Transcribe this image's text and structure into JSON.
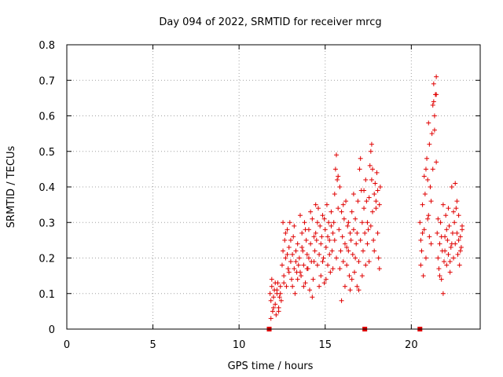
{
  "chart_data": {
    "type": "scatter",
    "title": "Day 094 of 2022, SRMTID for receiver mrcg",
    "xlabel": "GPS time / hours",
    "ylabel": "SRMTID / TECUs",
    "xlim": [
      0,
      24
    ],
    "ylim": [
      0,
      0.8
    ],
    "xticks": [
      0,
      5,
      10,
      15,
      20
    ],
    "xtick_labels": [
      "0",
      "5",
      "10",
      "15",
      "20"
    ],
    "yticks": [
      0,
      0.1,
      0.2,
      0.3,
      0.4,
      0.5,
      0.6,
      0.7,
      0.8
    ],
    "ytick_labels": [
      "0",
      "0.1",
      "0.2",
      "0.3",
      "0.4",
      "0.5",
      "0.6",
      "0.7",
      "0.8"
    ],
    "grid": true,
    "marker": "+",
    "color": "#e00000",
    "baseline_markers_x": [
      11.75,
      17.3,
      20.5
    ],
    "series": [
      {
        "name": "SRMTID",
        "points": [
          [
            11.8,
            0.1
          ],
          [
            11.85,
            0.08
          ],
          [
            11.9,
            0.12
          ],
          [
            11.95,
            0.05
          ],
          [
            12.0,
            0.09
          ],
          [
            12.05,
            0.11
          ],
          [
            12.1,
            0.07
          ],
          [
            12.15,
            0.04
          ],
          [
            12.2,
            0.1
          ],
          [
            12.25,
            0.13
          ],
          [
            12.3,
            0.06
          ],
          [
            12.35,
            0.09
          ],
          [
            12.4,
            0.12
          ],
          [
            12.45,
            0.08
          ],
          [
            11.85,
            0.03
          ],
          [
            11.9,
            0.14
          ],
          [
            12.0,
            0.06
          ],
          [
            12.1,
            0.13
          ],
          [
            12.2,
            0.11
          ],
          [
            12.3,
            0.05
          ],
          [
            12.4,
            0.1
          ],
          [
            12.5,
            0.18
          ],
          [
            12.55,
            0.22
          ],
          [
            12.6,
            0.15
          ],
          [
            12.65,
            0.25
          ],
          [
            12.7,
            0.2
          ],
          [
            12.75,
            0.12
          ],
          [
            12.8,
            0.28
          ],
          [
            12.85,
            0.17
          ],
          [
            12.9,
            0.23
          ],
          [
            12.95,
            0.3
          ],
          [
            13.0,
            0.19
          ],
          [
            13.05,
            0.14
          ],
          [
            13.1,
            0.21
          ],
          [
            13.15,
            0.26
          ],
          [
            13.2,
            0.17
          ],
          [
            13.25,
            0.1
          ],
          [
            13.3,
            0.22
          ],
          [
            13.35,
            0.16
          ],
          [
            13.4,
            0.24
          ],
          [
            13.45,
            0.18
          ],
          [
            12.55,
            0.3
          ],
          [
            12.6,
            0.13
          ],
          [
            12.7,
            0.27
          ],
          [
            12.8,
            0.21
          ],
          [
            12.9,
            0.16
          ],
          [
            13.0,
            0.25
          ],
          [
            13.1,
            0.12
          ],
          [
            13.2,
            0.29
          ],
          [
            13.3,
            0.19
          ],
          [
            13.4,
            0.14
          ],
          [
            13.5,
            0.2
          ],
          [
            13.55,
            0.32
          ],
          [
            13.6,
            0.15
          ],
          [
            13.65,
            0.27
          ],
          [
            13.7,
            0.22
          ],
          [
            13.75,
            0.18
          ],
          [
            13.8,
            0.3
          ],
          [
            13.85,
            0.13
          ],
          [
            13.9,
            0.25
          ],
          [
            13.95,
            0.21
          ],
          [
            14.0,
            0.17
          ],
          [
            14.05,
            0.28
          ],
          [
            14.1,
            0.11
          ],
          [
            14.15,
            0.24
          ],
          [
            14.2,
            0.19
          ],
          [
            14.25,
            0.31
          ],
          [
            14.3,
            0.14
          ],
          [
            14.35,
            0.26
          ],
          [
            14.4,
            0.22
          ],
          [
            14.45,
            0.35
          ],
          [
            13.55,
            0.16
          ],
          [
            13.65,
            0.23
          ],
          [
            13.75,
            0.12
          ],
          [
            13.85,
            0.28
          ],
          [
            13.95,
            0.17
          ],
          [
            14.05,
            0.2
          ],
          [
            14.15,
            0.33
          ],
          [
            14.25,
            0.09
          ],
          [
            14.35,
            0.19
          ],
          [
            14.45,
            0.27
          ],
          [
            14.5,
            0.25
          ],
          [
            14.55,
            0.18
          ],
          [
            14.6,
            0.34
          ],
          [
            14.65,
            0.21
          ],
          [
            14.7,
            0.29
          ],
          [
            14.75,
            0.15
          ],
          [
            14.8,
            0.26
          ],
          [
            14.85,
            0.32
          ],
          [
            14.9,
            0.2
          ],
          [
            14.95,
            0.13
          ],
          [
            15.0,
            0.28
          ],
          [
            15.05,
            0.23
          ],
          [
            15.1,
            0.35
          ],
          [
            15.15,
            0.18
          ],
          [
            15.2,
            0.3
          ],
          [
            15.25,
            0.25
          ],
          [
            15.3,
            0.16
          ],
          [
            15.35,
            0.33
          ],
          [
            15.4,
            0.22
          ],
          [
            15.45,
            0.27
          ],
          [
            14.55,
            0.3
          ],
          [
            14.65,
            0.12
          ],
          [
            14.75,
            0.24
          ],
          [
            14.85,
            0.19
          ],
          [
            14.95,
            0.31
          ],
          [
            15.05,
            0.14
          ],
          [
            15.15,
            0.26
          ],
          [
            15.25,
            0.21
          ],
          [
            15.35,
            0.29
          ],
          [
            15.45,
            0.17
          ],
          [
            15.5,
            0.3
          ],
          [
            15.55,
            0.38
          ],
          [
            15.6,
            0.45
          ],
          [
            15.65,
            0.49
          ],
          [
            15.7,
            0.42
          ],
          [
            15.75,
            0.34
          ],
          [
            15.8,
            0.28
          ],
          [
            15.85,
            0.4
          ],
          [
            15.9,
            0.22
          ],
          [
            15.95,
            0.33
          ],
          [
            16.0,
            0.26
          ],
          [
            16.05,
            0.19
          ],
          [
            16.1,
            0.31
          ],
          [
            16.15,
            0.24
          ],
          [
            16.2,
            0.36
          ],
          [
            16.25,
            0.18
          ],
          [
            16.3,
            0.29
          ],
          [
            16.35,
            0.22
          ],
          [
            16.4,
            0.15
          ],
          [
            16.45,
            0.27
          ],
          [
            15.55,
            0.25
          ],
          [
            15.65,
            0.2
          ],
          [
            15.75,
            0.43
          ],
          [
            15.85,
            0.17
          ],
          [
            15.95,
            0.08
          ],
          [
            16.05,
            0.35
          ],
          [
            16.15,
            0.12
          ],
          [
            16.25,
            0.23
          ],
          [
            16.35,
            0.3
          ],
          [
            16.45,
            0.11
          ],
          [
            16.5,
            0.25
          ],
          [
            16.55,
            0.33
          ],
          [
            16.6,
            0.21
          ],
          [
            16.65,
            0.28
          ],
          [
            16.7,
            0.16
          ],
          [
            16.75,
            0.31
          ],
          [
            16.8,
            0.24
          ],
          [
            16.85,
            0.12
          ],
          [
            16.9,
            0.36
          ],
          [
            16.95,
            0.19
          ],
          [
            17.0,
            0.45
          ],
          [
            17.05,
            0.48
          ],
          [
            17.1,
            0.39
          ],
          [
            17.15,
            0.3
          ],
          [
            17.2,
            0.22
          ],
          [
            17.25,
            0.34
          ],
          [
            17.3,
            0.27
          ],
          [
            17.35,
            0.42
          ],
          [
            17.4,
            0.36
          ],
          [
            17.45,
            0.3
          ],
          [
            16.55,
            0.14
          ],
          [
            16.65,
            0.38
          ],
          [
            16.75,
            0.2
          ],
          [
            16.85,
            0.27
          ],
          [
            16.95,
            0.11
          ],
          [
            17.05,
            0.25
          ],
          [
            17.15,
            0.15
          ],
          [
            17.25,
            0.39
          ],
          [
            17.35,
            0.18
          ],
          [
            17.45,
            0.24
          ],
          [
            17.5,
            0.28
          ],
          [
            17.55,
            0.37
          ],
          [
            17.6,
            0.46
          ],
          [
            17.65,
            0.5
          ],
          [
            17.7,
            0.42
          ],
          [
            17.75,
            0.33
          ],
          [
            17.8,
            0.25
          ],
          [
            17.85,
            0.38
          ],
          [
            17.9,
            0.41
          ],
          [
            17.95,
            0.34
          ],
          [
            18.0,
            0.44
          ],
          [
            18.05,
            0.39
          ],
          [
            18.1,
            0.2
          ],
          [
            18.15,
            0.17
          ],
          [
            18.2,
            0.4
          ],
          [
            17.55,
            0.19
          ],
          [
            17.65,
            0.29
          ],
          [
            17.75,
            0.45
          ],
          [
            17.85,
            0.22
          ],
          [
            17.95,
            0.36
          ],
          [
            18.05,
            0.27
          ],
          [
            18.15,
            0.35
          ],
          [
            17.7,
            0.52
          ],
          [
            20.5,
            0.3
          ],
          [
            20.55,
            0.25
          ],
          [
            20.6,
            0.22
          ],
          [
            20.65,
            0.35
          ],
          [
            20.7,
            0.15
          ],
          [
            20.75,
            0.28
          ],
          [
            20.8,
            0.38
          ],
          [
            20.85,
            0.45
          ],
          [
            20.9,
            0.48
          ],
          [
            20.95,
            0.42
          ],
          [
            21.0,
            0.32
          ],
          [
            21.05,
            0.26
          ],
          [
            21.1,
            0.4
          ],
          [
            21.15,
            0.36
          ],
          [
            21.2,
            0.55
          ],
          [
            21.25,
            0.63
          ],
          [
            21.3,
            0.69
          ],
          [
            21.35,
            0.6
          ],
          [
            21.4,
            0.66
          ],
          [
            21.45,
            0.71
          ],
          [
            20.55,
            0.18
          ],
          [
            20.65,
            0.27
          ],
          [
            20.75,
            0.43
          ],
          [
            20.85,
            0.2
          ],
          [
            20.95,
            0.31
          ],
          [
            21.05,
            0.52
          ],
          [
            21.15,
            0.24
          ],
          [
            21.25,
            0.45
          ],
          [
            21.35,
            0.56
          ],
          [
            21.45,
            0.47
          ],
          [
            21.0,
            0.58
          ],
          [
            21.3,
            0.64
          ],
          [
            21.45,
            0.66
          ],
          [
            21.5,
            0.27
          ],
          [
            21.55,
            0.2
          ],
          [
            21.6,
            0.17
          ],
          [
            21.65,
            0.24
          ],
          [
            21.7,
            0.3
          ],
          [
            21.75,
            0.14
          ],
          [
            21.8,
            0.22
          ],
          [
            21.85,
            0.35
          ],
          [
            21.9,
            0.19
          ],
          [
            21.95,
            0.26
          ],
          [
            22.0,
            0.32
          ],
          [
            22.05,
            0.18
          ],
          [
            22.1,
            0.25
          ],
          [
            22.15,
            0.21
          ],
          [
            22.2,
            0.29
          ],
          [
            22.25,
            0.16
          ],
          [
            22.3,
            0.23
          ],
          [
            22.35,
            0.4
          ],
          [
            22.4,
            0.27
          ],
          [
            22.45,
            0.33
          ],
          [
            21.55,
            0.31
          ],
          [
            21.65,
            0.15
          ],
          [
            21.75,
            0.26
          ],
          [
            21.85,
            0.1
          ],
          [
            21.95,
            0.22
          ],
          [
            22.05,
            0.28
          ],
          [
            22.15,
            0.34
          ],
          [
            22.25,
            0.19
          ],
          [
            22.35,
            0.24
          ],
          [
            22.45,
            0.2
          ],
          [
            22.5,
            0.3
          ],
          [
            22.55,
            0.24
          ],
          [
            22.6,
            0.34
          ],
          [
            22.65,
            0.27
          ],
          [
            22.7,
            0.21
          ],
          [
            22.75,
            0.32
          ],
          [
            22.8,
            0.18
          ],
          [
            22.85,
            0.26
          ],
          [
            22.9,
            0.23
          ],
          [
            22.95,
            0.29
          ],
          [
            22.55,
            0.41
          ],
          [
            22.65,
            0.36
          ],
          [
            22.75,
            0.25
          ],
          [
            22.85,
            0.22
          ],
          [
            22.95,
            0.28
          ]
        ]
      }
    ]
  }
}
